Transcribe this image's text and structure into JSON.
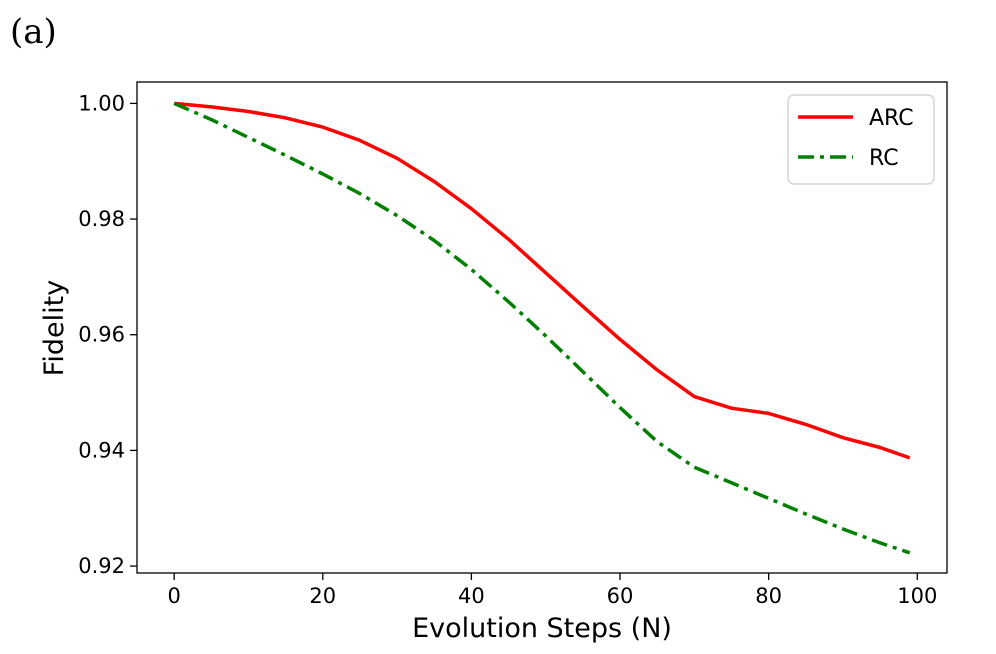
{
  "panel_label": "(a)",
  "chart_data": {
    "type": "line",
    "title": "",
    "xlabel": "Evolution Steps (N)",
    "ylabel": "Fidelity",
    "xlim": [
      -5,
      104
    ],
    "ylim": [
      0.9188,
      1.0037
    ],
    "xticks": [
      0,
      20,
      40,
      60,
      80,
      100
    ],
    "xtick_labels": [
      "0",
      "20",
      "40",
      "60",
      "80",
      "100"
    ],
    "yticks": [
      0.92,
      0.94,
      0.96,
      0.98,
      1.0
    ],
    "ytick_labels": [
      "0.92",
      "0.94",
      "0.96",
      "0.98",
      "1.00"
    ],
    "grid": false,
    "legend_position": "top-right",
    "x": [
      0,
      5,
      10,
      15,
      20,
      25,
      30,
      35,
      40,
      45,
      50,
      55,
      60,
      65,
      70,
      75,
      80,
      85,
      90,
      95,
      99
    ],
    "series": [
      {
        "name": "ARC",
        "color": "#ff0000",
        "style": "solid",
        "values": [
          1.0,
          0.9994,
          0.9986,
          0.9975,
          0.9959,
          0.9936,
          0.9905,
          0.9865,
          0.9818,
          0.9765,
          0.9707,
          0.9649,
          0.9592,
          0.9539,
          0.9493,
          0.9473,
          0.9464,
          0.9445,
          0.9422,
          0.9405,
          0.9387
        ]
      },
      {
        "name": "RC",
        "color": "#008000",
        "style": "dashdot",
        "values": [
          1.0,
          0.9972,
          0.9941,
          0.991,
          0.9878,
          0.9844,
          0.9806,
          0.9763,
          0.9713,
          0.9657,
          0.9598,
          0.9536,
          0.9474,
          0.9415,
          0.9371,
          0.9344,
          0.9317,
          0.929,
          0.9264,
          0.924,
          0.9223
        ]
      }
    ]
  }
}
